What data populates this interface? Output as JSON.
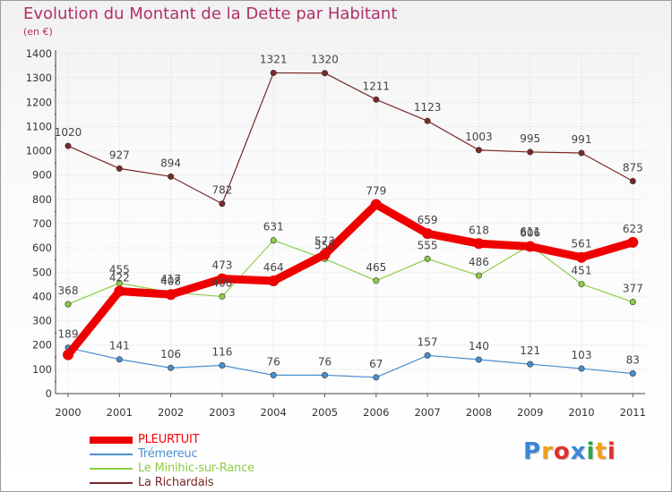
{
  "title": "Evolution du Montant de la Dette par Habitant",
  "subtitle": "(en €)",
  "logo_text": "Proxiti",
  "colors": {
    "title": "#b0306a",
    "axis_text": "#333333",
    "label_text": "#444444"
  },
  "chart_data": {
    "type": "line",
    "title": "Evolution du Montant de la Dette par Habitant",
    "subtitle": "(en €)",
    "xlabel": "",
    "ylabel": "",
    "x": [
      "2000",
      "2001",
      "2002",
      "2003",
      "2004",
      "2005",
      "2006",
      "2007",
      "2008",
      "2009",
      "2010",
      "2011"
    ],
    "ylim": [
      0,
      1400
    ],
    "yticks": [
      "0",
      "100",
      "200",
      "300",
      "400",
      "500",
      "600",
      "700",
      "800",
      "900",
      "1000",
      "1100",
      "1200",
      "1300",
      "1400"
    ],
    "grid": true,
    "legend_position": "bottom-left",
    "series": [
      {
        "name": "PLEURTUIT",
        "color": "#ee0000",
        "label_color": "#ff0000",
        "style": "thick",
        "values": [
          160,
          422,
          408,
          473,
          464,
          573,
          779,
          659,
          618,
          606,
          561,
          623
        ],
        "labels": [
          "",
          "422",
          "408",
          "473",
          "464",
          "573",
          "779",
          "659",
          "618",
          "606",
          "561",
          "623"
        ]
      },
      {
        "name": "Trémereuc",
        "color": "#4a8fd0",
        "label_color": "#4a8fd0",
        "style": "thin",
        "values": [
          189,
          141,
          106,
          116,
          76,
          76,
          67,
          157,
          140,
          121,
          103,
          83
        ],
        "labels": [
          "189",
          "141",
          "106",
          "116",
          "76",
          "76",
          "67",
          "157",
          "140",
          "121",
          "103",
          "83"
        ]
      },
      {
        "name": "Le Minihic-sur-Rance",
        "color": "#8ccd44",
        "label_color": "#8ccd44",
        "style": "thin",
        "values": [
          368,
          455,
          417,
          400,
          631,
          555,
          465,
          555,
          486,
          611,
          451,
          377
        ],
        "labels": [
          "368",
          "455",
          "417",
          "400",
          "631",
          "555",
          "465",
          "555",
          "486",
          "611",
          "451",
          "377"
        ]
      },
      {
        "name": "La Richardais",
        "color": "#7a2828",
        "label_color": "#7a2828",
        "style": "thin",
        "values": [
          1020,
          927,
          894,
          782,
          1321,
          1320,
          1211,
          1123,
          1003,
          995,
          991,
          875
        ],
        "labels": [
          "1020",
          "927",
          "894",
          "782",
          "1321",
          "1320",
          "1211",
          "1123",
          "1003",
          "995",
          "991",
          "875"
        ]
      }
    ]
  }
}
